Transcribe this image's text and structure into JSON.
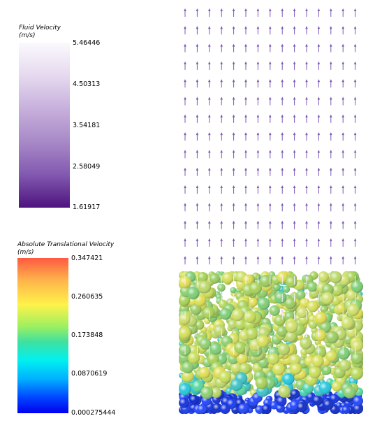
{
  "fluid_legend": {
    "title": "Fluid Velocity",
    "unit": "(m/s)",
    "ticks": [
      "5.46446",
      "4.50313",
      "3.54181",
      "2.58049",
      "1.61917"
    ],
    "colors": [
      "#ffffff",
      "#d9c9e6",
      "#a98cc6",
      "#7a55a8",
      "#4b1a82"
    ]
  },
  "particle_legend": {
    "title": "Absolute Translational Velocity",
    "unit": "(m/s)",
    "ticks": [
      "0.347421",
      "0.260635",
      "0.173848",
      "0.0870619",
      "0.000275444"
    ],
    "colors": [
      "#ff4b3a",
      "#ffe04a",
      "#4dd9a0",
      "#00e0ff",
      "#0018ff"
    ]
  },
  "scene": {
    "arrow_color": "#7b57b4",
    "particle_bed_colors": [
      "#a8d35a",
      "#d6e05a",
      "#7fcf78",
      "#3fc4c8",
      "#1634e0"
    ]
  }
}
